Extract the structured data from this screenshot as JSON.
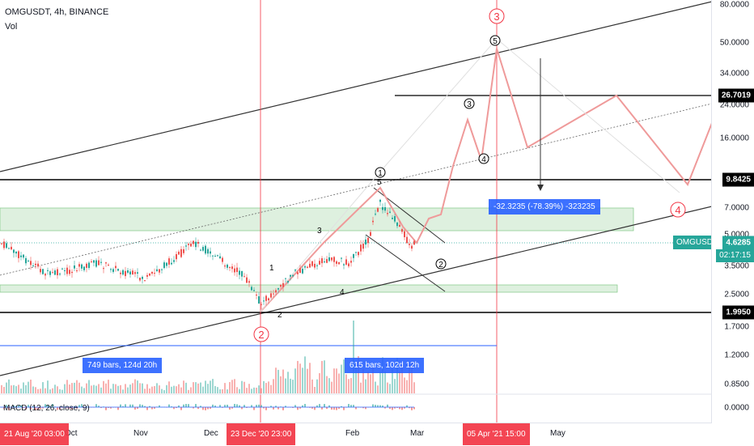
{
  "header": {
    "title": "OMGUSDT, 4h, BINANCE",
    "volume_label": "Vol",
    "macd_label": "MACD (12, 26, close, 9)"
  },
  "price_scale": {
    "ticks": [
      "80.0000",
      "50.0000",
      "34.0000",
      "24.0000",
      "16.0000",
      "7.0000",
      "5.0000",
      "3.5000",
      "2.5000",
      "1.7000",
      "1.2000",
      "0.8500",
      "0.0000"
    ],
    "tag_top": "26.7019",
    "tag_mid": "9.8425",
    "tag_low": "1.9950",
    "last_price": "4.6285",
    "countdown": "02:17:15",
    "symbol_tag": "OMGUSDT"
  },
  "time_axis": {
    "labels": [
      "Oct",
      "Nov",
      "Dec",
      "Feb",
      "Mar",
      "May"
    ],
    "marker_left": "21 Aug '20  03:00",
    "marker_mid": "23 Dec '20  23:00",
    "marker_right": "05 Apr '21  15:00"
  },
  "measure": {
    "range_left": "749 bars, 124d 20h",
    "range_right": "615 bars, 102d 12h",
    "price_change": "-32.3235 (-78.39%) -323235"
  },
  "wave_labels": {
    "major_3": "3",
    "major_2": "2",
    "major_4": "4",
    "minor_5": "5",
    "minor_3": "3",
    "minor_1": "1",
    "minor_4": "4",
    "minor_2": "2",
    "sub_1": "1",
    "sub_2": "2",
    "sub_3": "3",
    "sub_4": "4",
    "sub_5": "5"
  },
  "colors": {
    "up": "#26a69a",
    "down": "#ef5350",
    "accent": "#2962ff",
    "marker": "#f23645"
  }
}
